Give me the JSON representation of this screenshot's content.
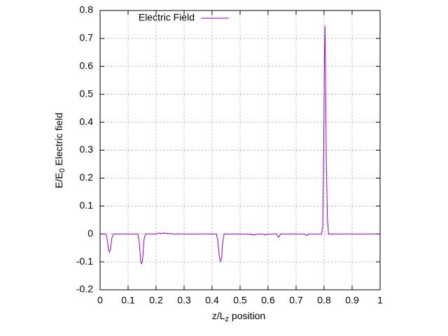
{
  "chart_data": {
    "type": "line",
    "xlabel": [
      "z/L",
      "z",
      " position"
    ],
    "ylabel": [
      "E/E",
      "0",
      " Electric field"
    ],
    "x": [
      0,
      0.02,
      0.025,
      0.03,
      0.033,
      0.037,
      0.042,
      0.047,
      0.135,
      0.14,
      0.145,
      0.148,
      0.152,
      0.157,
      0.162,
      0.2,
      0.21,
      0.22,
      0.23,
      0.26,
      0.415,
      0.42,
      0.425,
      0.43,
      0.434,
      0.438,
      0.443,
      0.53,
      0.55,
      0.56,
      0.58,
      0.59,
      0.6,
      0.63,
      0.638,
      0.645,
      0.73,
      0.738,
      0.745,
      0.79,
      0.795,
      0.798,
      0.801,
      0.803,
      0.805,
      0.808,
      0.812,
      0.816,
      1
    ],
    "series": [
      {
        "name": "Electric Field",
        "color": "#9400d3",
        "values": [
          0,
          0,
          -0.015,
          -0.055,
          -0.065,
          -0.055,
          -0.015,
          0,
          0,
          -0.03,
          -0.095,
          -0.108,
          -0.09,
          -0.02,
          0,
          0,
          0.003,
          0.002,
          0.003,
          0,
          0,
          -0.02,
          -0.075,
          -0.1,
          -0.085,
          -0.03,
          0,
          0,
          -0.004,
          0,
          0,
          -0.004,
          0,
          0,
          -0.012,
          0,
          0,
          -0.006,
          0,
          0,
          0.02,
          0.25,
          0.6,
          0.745,
          0.6,
          0.25,
          0.05,
          0,
          0
        ]
      }
    ],
    "xlim": [
      0,
      1
    ],
    "xticks": [
      0,
      0.1,
      0.2,
      0.3,
      0.4,
      0.5,
      0.6,
      0.7,
      0.8,
      0.9,
      1
    ],
    "ylim": [
      -0.2,
      0.8
    ],
    "yticks": [
      -0.2,
      -0.1,
      0,
      0.1,
      0.2,
      0.3,
      0.4,
      0.5,
      0.6,
      0.7,
      0.8
    ],
    "grid": true,
    "legend": "top-left"
  }
}
